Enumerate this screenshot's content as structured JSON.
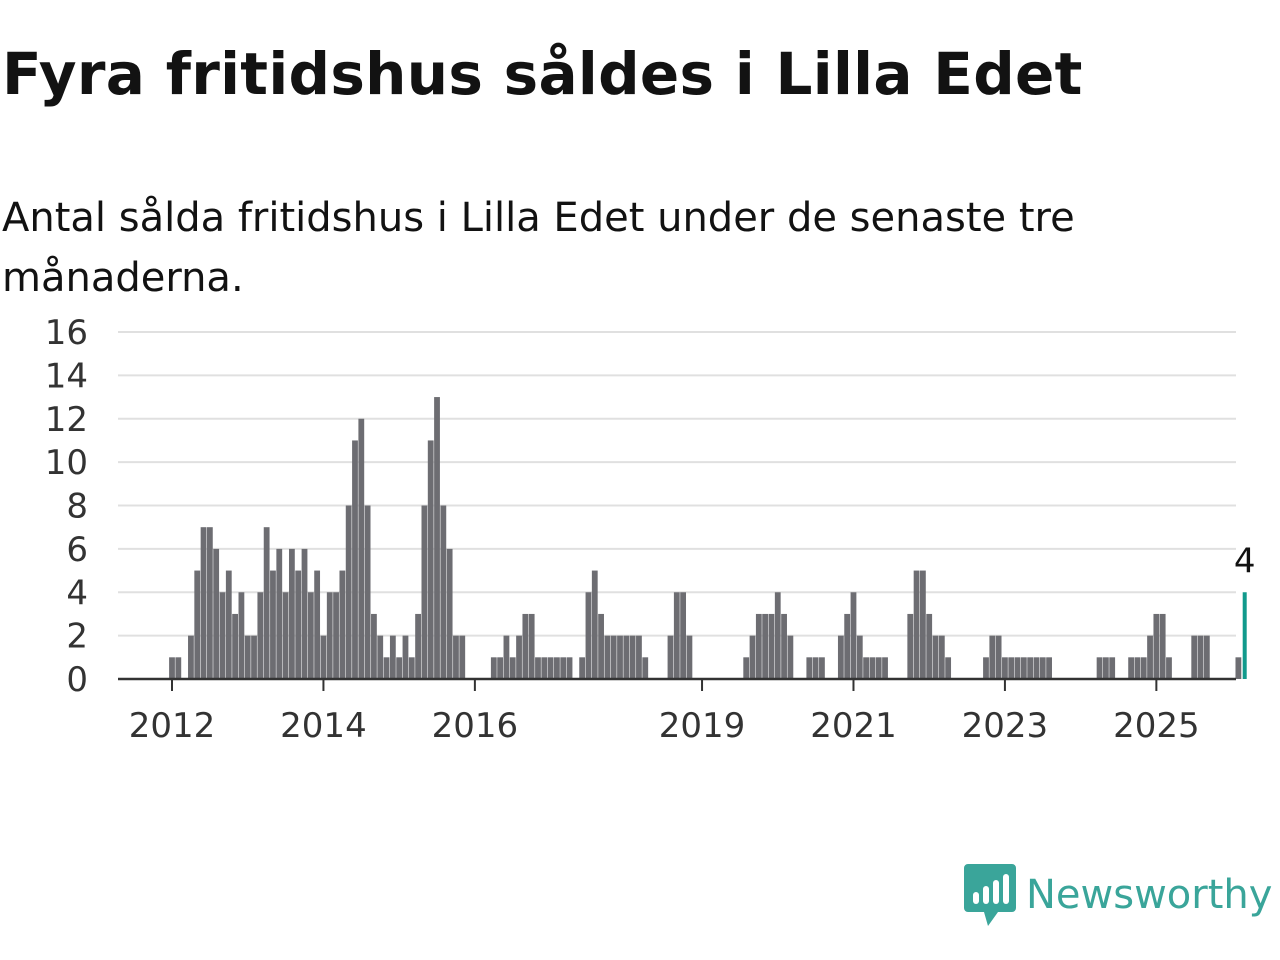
{
  "header": {
    "title": "Fyra fritidshus såldes i Lilla Edet",
    "subtitle": "Antal sålda fritidshus i Lilla Edet under de senaste tre månaderna."
  },
  "branding": {
    "name": "Newsworthy",
    "logo_icon": "newsworthy-logo-icon",
    "color": "#3aa59a"
  },
  "colors": {
    "bar": "#6d6d72",
    "highlight": "#119a8c",
    "grid": "#e0e0e0",
    "axis": "#333333"
  },
  "chart_data": {
    "type": "bar",
    "title": "Fyra fritidshus såldes i Lilla Edet",
    "subtitle": "Antal sålda fritidshus i Lilla Edet under de senaste tre månaderna.",
    "ylim": [
      0,
      16
    ],
    "y_ticks": [
      "0",
      "2",
      "4",
      "6",
      "8",
      "10",
      "12",
      "14",
      "16"
    ],
    "x_ticks": [
      "2012",
      "2014",
      "2016",
      "2019",
      "2021",
      "2023",
      "2025"
    ],
    "x_tick_dates": [
      "2012-01",
      "2014-01",
      "2016-01",
      "2019-01",
      "2021-01",
      "2023-01",
      "2025-01"
    ],
    "grid": true,
    "first_month": "2011-01",
    "values": [
      0,
      0,
      0,
      0,
      0,
      0,
      0,
      0,
      0,
      0,
      0,
      0,
      1,
      1,
      0,
      2,
      5,
      7,
      7,
      6,
      4,
      5,
      3,
      4,
      2,
      2,
      4,
      7,
      5,
      6,
      4,
      6,
      5,
      6,
      4,
      5,
      2,
      4,
      4,
      5,
      8,
      11,
      12,
      8,
      3,
      2,
      1,
      2,
      1,
      2,
      1,
      3,
      8,
      11,
      13,
      8,
      6,
      2,
      2,
      0,
      0,
      0,
      0,
      1,
      1,
      2,
      1,
      2,
      3,
      3,
      1,
      1,
      1,
      1,
      1,
      1,
      0,
      1,
      4,
      5,
      3,
      2,
      2,
      2,
      2,
      2,
      2,
      1,
      0,
      0,
      0,
      2,
      4,
      4,
      2,
      0,
      0,
      0,
      0,
      0,
      0,
      0,
      0,
      1,
      2,
      3,
      3,
      3,
      4,
      3,
      2,
      0,
      0,
      1,
      1,
      1,
      0,
      0,
      2,
      3,
      4,
      2,
      1,
      1,
      1,
      1,
      0,
      0,
      0,
      3,
      5,
      5,
      3,
      2,
      2,
      1,
      0,
      0,
      0,
      0,
      0,
      1,
      2,
      2,
      1,
      1,
      1,
      1,
      1,
      1,
      1,
      1,
      0,
      0,
      0,
      0,
      0,
      0,
      0,
      1,
      1,
      1,
      0,
      0,
      1,
      1,
      1,
      2,
      3,
      3,
      1,
      0,
      0,
      0,
      2,
      2,
      2,
      0,
      0,
      0,
      0,
      1,
      4
    ],
    "highlight_label": "4"
  }
}
